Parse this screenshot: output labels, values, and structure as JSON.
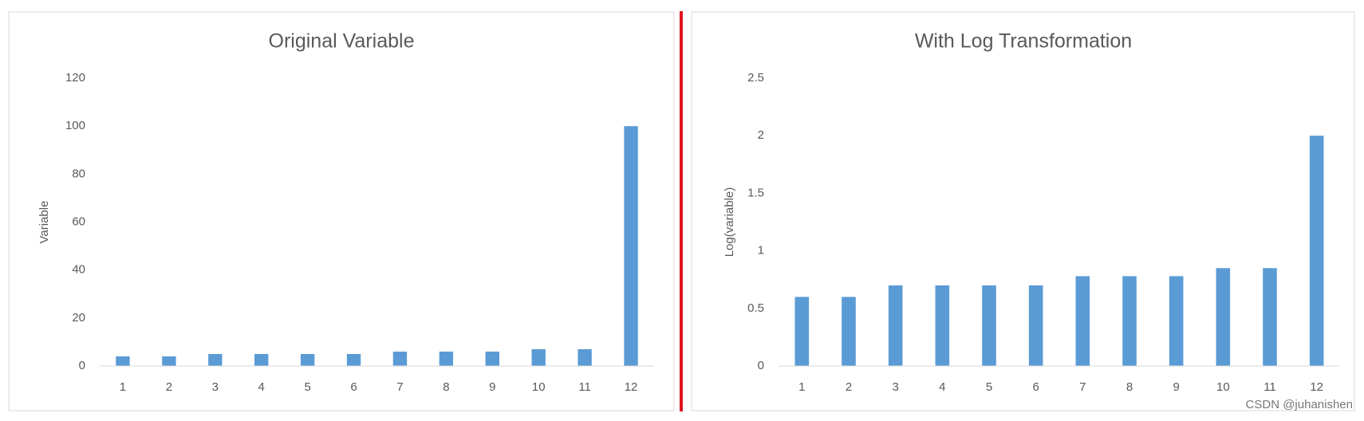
{
  "chart_data": [
    {
      "type": "bar",
      "title": "Original Variable",
      "y_label": "Variable",
      "categories": [
        "1",
        "2",
        "3",
        "4",
        "5",
        "6",
        "7",
        "8",
        "9",
        "10",
        "11",
        "12"
      ],
      "values": [
        4,
        4,
        5,
        5,
        5,
        5,
        6,
        6,
        6,
        7,
        7,
        100
      ],
      "color": "#5b9bd5",
      "ylim": [
        0,
        120
      ],
      "yticks": [
        0,
        20,
        40,
        60,
        80,
        100,
        120
      ],
      "grid": false
    },
    {
      "type": "bar",
      "title": "With Log Transformation",
      "y_label": "Log(variable)",
      "categories": [
        "1",
        "2",
        "3",
        "4",
        "5",
        "6",
        "7",
        "8",
        "9",
        "10",
        "11",
        "12"
      ],
      "values": [
        0.6,
        0.6,
        0.7,
        0.7,
        0.7,
        0.7,
        0.78,
        0.78,
        0.78,
        0.85,
        0.85,
        2
      ],
      "color": "#5b9bd5",
      "ylim": [
        0,
        2.5
      ],
      "yticks": [
        0,
        0.5,
        1,
        1.5,
        2,
        2.5
      ],
      "grid": false
    }
  ],
  "watermark": "CSDN @juhanishen"
}
